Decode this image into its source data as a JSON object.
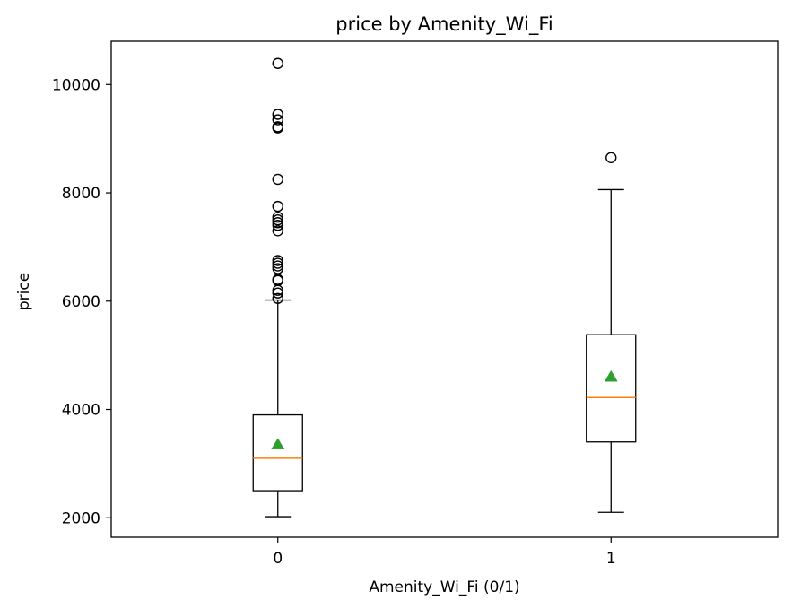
{
  "chart_data": {
    "type": "box",
    "title": "price by Amenity_Wi_Fi",
    "xlabel": "Amenity_Wi_Fi (0/1)",
    "ylabel": "price",
    "categories": [
      "0",
      "1"
    ],
    "ylim": [
      1640,
      10800
    ],
    "yticks": [
      2000,
      4000,
      6000,
      8000,
      10000
    ],
    "grid": false,
    "colors": {
      "box": "#000000",
      "median": "#ff7f0e",
      "mean": "#2ca02c",
      "flier": "#000000"
    },
    "series": [
      {
        "category": "0",
        "whisker_low": 2020,
        "q1": 2500,
        "median": 3100,
        "mean": 3350,
        "q3": 3900,
        "whisker_high": 6020,
        "fliers": [
          6050,
          6150,
          6200,
          6380,
          6400,
          6600,
          6650,
          6700,
          6750,
          7300,
          7400,
          7450,
          7500,
          7550,
          7750,
          8250,
          9200,
          9220,
          9350,
          9450,
          10390
        ]
      },
      {
        "category": "1",
        "whisker_low": 2100,
        "q1": 3400,
        "median": 4220,
        "mean": 4600,
        "q3": 5380,
        "whisker_high": 8060,
        "fliers": [
          8650
        ]
      }
    ]
  }
}
